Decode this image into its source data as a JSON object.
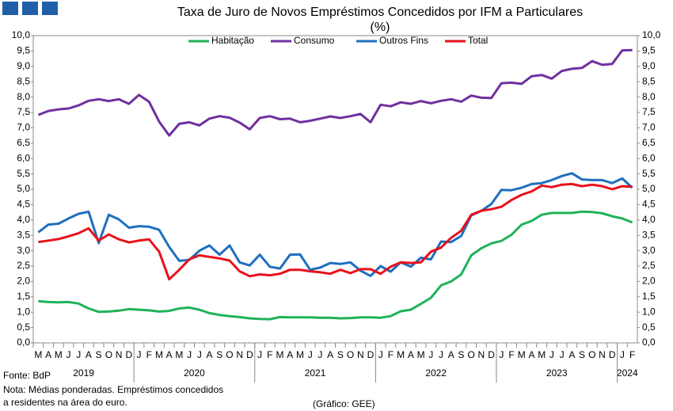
{
  "chart_data": {
    "type": "line",
    "title": "Taxa de Juro de Novos Empréstimos Concedidos por IFM a Particulares",
    "subtitle": "(%)",
    "categories": [
      "M",
      "A",
      "M",
      "J",
      "J",
      "A",
      "S",
      "O",
      "N",
      "D",
      "J",
      "F",
      "M",
      "A",
      "M",
      "J",
      "J",
      "A",
      "S",
      "O",
      "N",
      "D",
      "J",
      "F",
      "M",
      "A",
      "M",
      "J",
      "J",
      "A",
      "S",
      "O",
      "N",
      "D",
      "J",
      "F",
      "M",
      "A",
      "M",
      "J",
      "J",
      "A",
      "S",
      "O",
      "N",
      "D",
      "J",
      "F",
      "M",
      "A",
      "M",
      "J",
      "J",
      "A",
      "S",
      "O",
      "N",
      "D",
      "J",
      "F"
    ],
    "years": [
      "2019",
      "2020",
      "2021",
      "2022",
      "2023",
      "2024"
    ],
    "series": [
      {
        "name": "Habitação",
        "color": "#21b25a",
        "values": [
          1.36,
          1.33,
          1.32,
          1.33,
          1.28,
          1.12,
          1.01,
          1.02,
          1.05,
          1.1,
          1.08,
          1.06,
          1.02,
          1.04,
          1.12,
          1.15,
          1.08,
          0.97,
          0.91,
          0.87,
          0.84,
          0.8,
          0.78,
          0.77,
          0.84,
          0.83,
          0.83,
          0.83,
          0.82,
          0.82,
          0.8,
          0.81,
          0.83,
          0.83,
          0.82,
          0.87,
          1.03,
          1.08,
          1.27,
          1.47,
          1.87,
          2.0,
          2.23,
          2.85,
          3.08,
          3.24,
          3.32,
          3.52,
          3.85,
          3.97,
          4.17,
          4.23,
          4.23,
          4.23,
          4.27,
          4.26,
          4.22,
          4.12,
          4.05,
          3.92
        ]
      },
      {
        "name": "Consumo",
        "color": "#7030a0",
        "values": [
          7.42,
          7.55,
          7.6,
          7.63,
          7.73,
          7.88,
          7.93,
          7.87,
          7.93,
          7.78,
          8.07,
          7.85,
          7.2,
          6.75,
          7.13,
          7.18,
          7.08,
          7.3,
          7.38,
          7.33,
          7.17,
          6.95,
          7.32,
          7.38,
          7.28,
          7.3,
          7.18,
          7.23,
          7.3,
          7.37,
          7.32,
          7.38,
          7.45,
          7.18,
          7.75,
          7.7,
          7.83,
          7.78,
          7.87,
          7.8,
          7.88,
          7.93,
          7.85,
          8.05,
          7.98,
          7.97,
          8.45,
          8.47,
          8.43,
          8.68,
          8.72,
          8.6,
          8.85,
          8.92,
          8.95,
          9.17,
          9.05,
          9.08,
          9.52,
          9.53
        ]
      },
      {
        "name": "Outros Fins",
        "color": "#1f6fbf",
        "values": [
          3.6,
          3.85,
          3.88,
          4.05,
          4.2,
          4.27,
          3.25,
          4.17,
          4.02,
          3.75,
          3.8,
          3.78,
          3.68,
          3.12,
          2.67,
          2.7,
          3.0,
          3.17,
          2.87,
          3.17,
          2.62,
          2.52,
          2.87,
          2.48,
          2.42,
          2.87,
          2.88,
          2.38,
          2.45,
          2.6,
          2.57,
          2.62,
          2.35,
          2.18,
          2.5,
          2.32,
          2.62,
          2.48,
          2.77,
          2.72,
          3.3,
          3.28,
          3.48,
          4.15,
          4.3,
          4.52,
          4.98,
          4.97,
          5.05,
          5.17,
          5.2,
          5.3,
          5.43,
          5.52,
          5.32,
          5.3,
          5.3,
          5.2,
          5.35,
          5.05
        ]
      },
      {
        "name": "Total",
        "color": "#e8111a",
        "values": [
          3.28,
          3.33,
          3.38,
          3.47,
          3.57,
          3.73,
          3.33,
          3.53,
          3.37,
          3.27,
          3.33,
          3.37,
          2.97,
          2.07,
          2.38,
          2.72,
          2.85,
          2.8,
          2.75,
          2.68,
          2.33,
          2.17,
          2.23,
          2.2,
          2.25,
          2.38,
          2.38,
          2.33,
          2.3,
          2.25,
          2.38,
          2.27,
          2.4,
          2.4,
          2.25,
          2.48,
          2.62,
          2.6,
          2.62,
          2.97,
          3.1,
          3.42,
          3.65,
          4.17,
          4.3,
          4.35,
          4.43,
          4.65,
          4.82,
          4.93,
          5.12,
          5.07,
          5.15,
          5.17,
          5.1,
          5.15,
          5.1,
          5.0,
          5.1,
          5.08
        ]
      }
    ],
    "ylim": [
      0,
      10
    ],
    "yticks": [
      {
        "value": 0,
        "label": "0,0"
      },
      {
        "value": 0.5,
        "label": "0,5"
      },
      {
        "value": 1,
        "label": "1,0"
      },
      {
        "value": 1.5,
        "label": "1,5"
      },
      {
        "value": 2,
        "label": "2,0"
      },
      {
        "value": 2.5,
        "label": "2,5"
      },
      {
        "value": 3,
        "label": "3,0"
      },
      {
        "value": 3.5,
        "label": "3,5"
      },
      {
        "value": 4,
        "label": "4,0"
      },
      {
        "value": 4.5,
        "label": "4,5"
      },
      {
        "value": 5,
        "label": "5,0"
      },
      {
        "value": 5.5,
        "label": "5,5"
      },
      {
        "value": 6,
        "label": "6,0"
      },
      {
        "value": 6.5,
        "label": "6,5"
      },
      {
        "value": 7,
        "label": "7,0"
      },
      {
        "value": 7.5,
        "label": "7,5"
      },
      {
        "value": 8,
        "label": "8,0"
      },
      {
        "value": 8.5,
        "label": "8,5"
      },
      {
        "value": 9,
        "label": "9,0"
      },
      {
        "value": 9.5,
        "label": "9,5"
      },
      {
        "value": 10,
        "label": "10,0"
      }
    ],
    "y2lim": [
      0,
      10
    ],
    "y2ticks": [
      {
        "value": 0,
        "label": "0,0"
      },
      {
        "value": 0.5,
        "label": "0,5"
      },
      {
        "value": 1,
        "label": "1,0"
      },
      {
        "value": 1.5,
        "label": "1,5"
      },
      {
        "value": 2,
        "label": "2,0"
      },
      {
        "value": 2.5,
        "label": "2,5"
      },
      {
        "value": 3,
        "label": "3,0"
      },
      {
        "value": 3.5,
        "label": "3,5"
      },
      {
        "value": 4,
        "label": "4,0"
      },
      {
        "value": 4.5,
        "label": "4,5"
      },
      {
        "value": 5,
        "label": "5,0"
      },
      {
        "value": 5.5,
        "label": "5,5"
      },
      {
        "value": 6,
        "label": "6,0"
      },
      {
        "value": 6.5,
        "label": "6,5"
      },
      {
        "value": 7,
        "label": "7,0"
      },
      {
        "value": 7.5,
        "label": "7,5"
      },
      {
        "value": 8,
        "label": "8,0"
      },
      {
        "value": 8.5,
        "label": "8,5"
      },
      {
        "value": 9,
        "label": "9,0"
      },
      {
        "value": 9.5,
        "label": "9,5"
      },
      {
        "value": 10,
        "label": "10,0"
      }
    ],
    "grid": false,
    "legend": "top",
    "source": "Fonte: BdP",
    "note": [
      "Nota: Médias ponderadas. Empréstimos concedidos",
      "a residentes na área do euro."
    ],
    "credit": "(Gráfico: GEE)"
  }
}
